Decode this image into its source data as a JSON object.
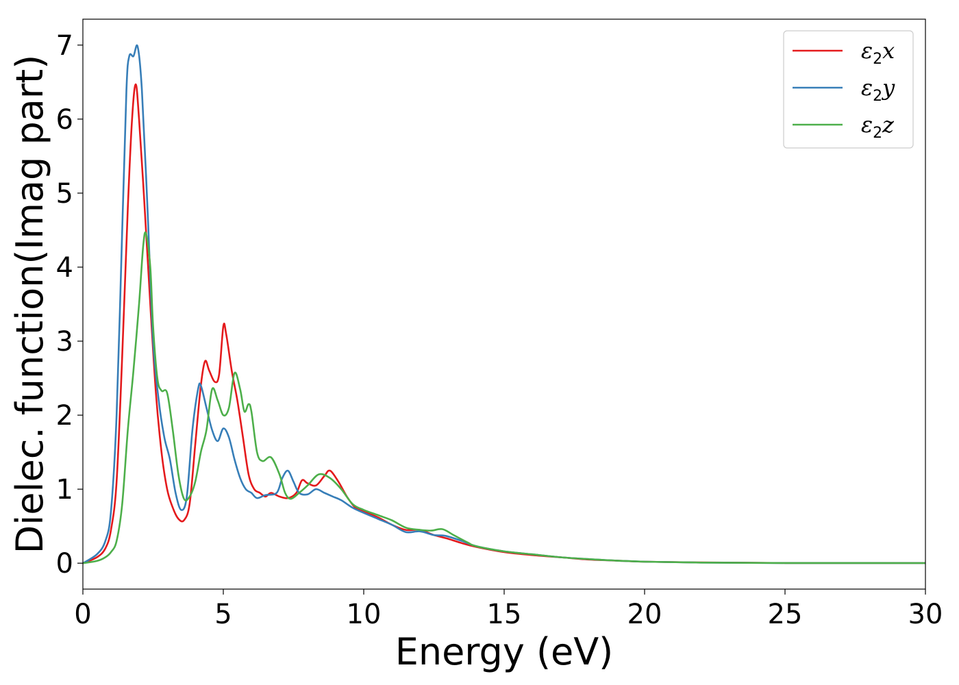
{
  "chart_data": {
    "type": "line",
    "xlabel": "Energy (eV)",
    "ylabel": "Dielec. function(Imag part)",
    "xlim": [
      0,
      30
    ],
    "ylim": [
      -0.35,
      7.35
    ],
    "xticks": [
      0,
      5,
      10,
      15,
      20,
      25,
      30
    ],
    "yticks": [
      0,
      1,
      2,
      3,
      4,
      5,
      6,
      7
    ],
    "grid": false,
    "legend_position": "top-right",
    "series": [
      {
        "name": "ε2x",
        "legend_base": "ε",
        "legend_sub": "2",
        "legend_suffix": "x",
        "color": "#e41a1c",
        "points": [
          [
            0,
            0
          ],
          [
            0.5,
            0.08
          ],
          [
            0.8,
            0.2
          ],
          [
            1.0,
            0.45
          ],
          [
            1.2,
            1.1
          ],
          [
            1.4,
            2.8
          ],
          [
            1.6,
            4.8
          ],
          [
            1.75,
            6.0
          ],
          [
            1.88,
            6.47
          ],
          [
            2.0,
            6.0
          ],
          [
            2.2,
            4.8
          ],
          [
            2.4,
            3.5
          ],
          [
            2.6,
            2.3
          ],
          [
            2.8,
            1.5
          ],
          [
            3.0,
            1.0
          ],
          [
            3.2,
            0.75
          ],
          [
            3.4,
            0.6
          ],
          [
            3.6,
            0.58
          ],
          [
            3.8,
            0.8
          ],
          [
            4.0,
            1.6
          ],
          [
            4.2,
            2.4
          ],
          [
            4.35,
            2.73
          ],
          [
            4.5,
            2.6
          ],
          [
            4.7,
            2.45
          ],
          [
            4.85,
            2.55
          ],
          [
            5.0,
            3.2
          ],
          [
            5.1,
            3.1
          ],
          [
            5.3,
            2.6
          ],
          [
            5.5,
            2.2
          ],
          [
            5.7,
            1.7
          ],
          [
            5.9,
            1.2
          ],
          [
            6.1,
            1.0
          ],
          [
            6.3,
            0.95
          ],
          [
            6.5,
            0.9
          ],
          [
            6.7,
            0.95
          ],
          [
            7.0,
            0.9
          ],
          [
            7.3,
            0.88
          ],
          [
            7.6,
            0.95
          ],
          [
            7.8,
            1.12
          ],
          [
            8.0,
            1.08
          ],
          [
            8.3,
            1.05
          ],
          [
            8.6,
            1.18
          ],
          [
            8.8,
            1.25
          ],
          [
            9.1,
            1.1
          ],
          [
            9.4,
            0.9
          ],
          [
            9.7,
            0.75
          ],
          [
            10.0,
            0.7
          ],
          [
            10.5,
            0.62
          ],
          [
            11.0,
            0.52
          ],
          [
            11.5,
            0.45
          ],
          [
            12.0,
            0.45
          ],
          [
            12.5,
            0.38
          ],
          [
            13.0,
            0.33
          ],
          [
            13.5,
            0.27
          ],
          [
            14.0,
            0.22
          ],
          [
            15.0,
            0.15
          ],
          [
            16.0,
            0.11
          ],
          [
            17.0,
            0.08
          ],
          [
            18.0,
            0.05
          ],
          [
            19.0,
            0.035
          ],
          [
            20.0,
            0.02
          ],
          [
            22.0,
            0.01
          ],
          [
            25.0,
            0.003
          ],
          [
            30.0,
            0.002
          ]
        ]
      },
      {
        "name": "ε2y",
        "legend_base": "ε",
        "legend_sub": "2",
        "legend_suffix": "y",
        "color": "#377eb8",
        "points": [
          [
            0,
            0
          ],
          [
            0.5,
            0.12
          ],
          [
            0.8,
            0.3
          ],
          [
            1.0,
            0.7
          ],
          [
            1.2,
            2.0
          ],
          [
            1.4,
            4.5
          ],
          [
            1.55,
            6.4
          ],
          [
            1.65,
            6.85
          ],
          [
            1.8,
            6.85
          ],
          [
            1.95,
            6.98
          ],
          [
            2.1,
            6.4
          ],
          [
            2.3,
            4.8
          ],
          [
            2.5,
            3.0
          ],
          [
            2.7,
            2.2
          ],
          [
            2.9,
            1.7
          ],
          [
            3.1,
            1.4
          ],
          [
            3.3,
            0.95
          ],
          [
            3.5,
            0.72
          ],
          [
            3.7,
            0.9
          ],
          [
            3.9,
            1.8
          ],
          [
            4.1,
            2.35
          ],
          [
            4.2,
            2.4
          ],
          [
            4.4,
            2.1
          ],
          [
            4.6,
            1.8
          ],
          [
            4.8,
            1.65
          ],
          [
            5.0,
            1.82
          ],
          [
            5.2,
            1.7
          ],
          [
            5.4,
            1.4
          ],
          [
            5.6,
            1.15
          ],
          [
            5.8,
            1.0
          ],
          [
            6.0,
            0.95
          ],
          [
            6.2,
            0.88
          ],
          [
            6.5,
            0.92
          ],
          [
            6.9,
            0.95
          ],
          [
            7.1,
            1.15
          ],
          [
            7.3,
            1.25
          ],
          [
            7.5,
            1.1
          ],
          [
            7.7,
            0.95
          ],
          [
            8.0,
            0.93
          ],
          [
            8.3,
            1.0
          ],
          [
            8.6,
            0.95
          ],
          [
            8.9,
            0.9
          ],
          [
            9.2,
            0.85
          ],
          [
            9.6,
            0.75
          ],
          [
            10.0,
            0.68
          ],
          [
            10.5,
            0.6
          ],
          [
            11.0,
            0.52
          ],
          [
            11.5,
            0.42
          ],
          [
            12.0,
            0.43
          ],
          [
            12.5,
            0.38
          ],
          [
            12.9,
            0.37
          ],
          [
            13.5,
            0.3
          ],
          [
            14.0,
            0.23
          ],
          [
            15.0,
            0.16
          ],
          [
            16.0,
            0.12
          ],
          [
            17.0,
            0.08
          ],
          [
            18.0,
            0.055
          ],
          [
            19.0,
            0.035
          ],
          [
            20.0,
            0.02
          ],
          [
            22.0,
            0.008
          ],
          [
            25.0,
            0.003
          ],
          [
            30.0,
            0.002
          ]
        ]
      },
      {
        "name": "ε2z",
        "legend_base": "ε",
        "legend_sub": "2",
        "legend_suffix": "z",
        "color": "#4daf4a",
        "points": [
          [
            0,
            0
          ],
          [
            0.5,
            0.03
          ],
          [
            0.8,
            0.08
          ],
          [
            1.0,
            0.15
          ],
          [
            1.2,
            0.3
          ],
          [
            1.4,
            0.8
          ],
          [
            1.6,
            1.8
          ],
          [
            1.8,
            2.6
          ],
          [
            2.0,
            3.5
          ],
          [
            2.15,
            4.3
          ],
          [
            2.25,
            4.45
          ],
          [
            2.4,
            4.0
          ],
          [
            2.5,
            3.2
          ],
          [
            2.65,
            2.5
          ],
          [
            2.8,
            2.33
          ],
          [
            3.0,
            2.3
          ],
          [
            3.2,
            1.8
          ],
          [
            3.4,
            1.2
          ],
          [
            3.6,
            0.87
          ],
          [
            3.8,
            0.9
          ],
          [
            4.0,
            1.1
          ],
          [
            4.2,
            1.5
          ],
          [
            4.4,
            1.8
          ],
          [
            4.6,
            2.35
          ],
          [
            4.8,
            2.2
          ],
          [
            5.0,
            2.0
          ],
          [
            5.2,
            2.1
          ],
          [
            5.4,
            2.57
          ],
          [
            5.6,
            2.35
          ],
          [
            5.75,
            2.05
          ],
          [
            5.9,
            2.15
          ],
          [
            6.0,
            2.05
          ],
          [
            6.2,
            1.5
          ],
          [
            6.4,
            1.38
          ],
          [
            6.7,
            1.43
          ],
          [
            7.0,
            1.2
          ],
          [
            7.2,
            0.95
          ],
          [
            7.4,
            0.87
          ],
          [
            7.7,
            0.95
          ],
          [
            8.0,
            1.05
          ],
          [
            8.4,
            1.2
          ],
          [
            8.8,
            1.15
          ],
          [
            9.2,
            1.0
          ],
          [
            9.6,
            0.8
          ],
          [
            10.0,
            0.72
          ],
          [
            10.5,
            0.65
          ],
          [
            11.0,
            0.58
          ],
          [
            11.5,
            0.48
          ],
          [
            12.0,
            0.45
          ],
          [
            12.4,
            0.44
          ],
          [
            12.8,
            0.46
          ],
          [
            13.2,
            0.38
          ],
          [
            13.7,
            0.28
          ],
          [
            14.0,
            0.23
          ],
          [
            15.0,
            0.16
          ],
          [
            16.0,
            0.12
          ],
          [
            17.0,
            0.08
          ],
          [
            18.0,
            0.055
          ],
          [
            19.0,
            0.035
          ],
          [
            20.0,
            0.02
          ],
          [
            22.0,
            0.008
          ],
          [
            25.0,
            0.003
          ],
          [
            30.0,
            0.002
          ]
        ]
      }
    ]
  }
}
